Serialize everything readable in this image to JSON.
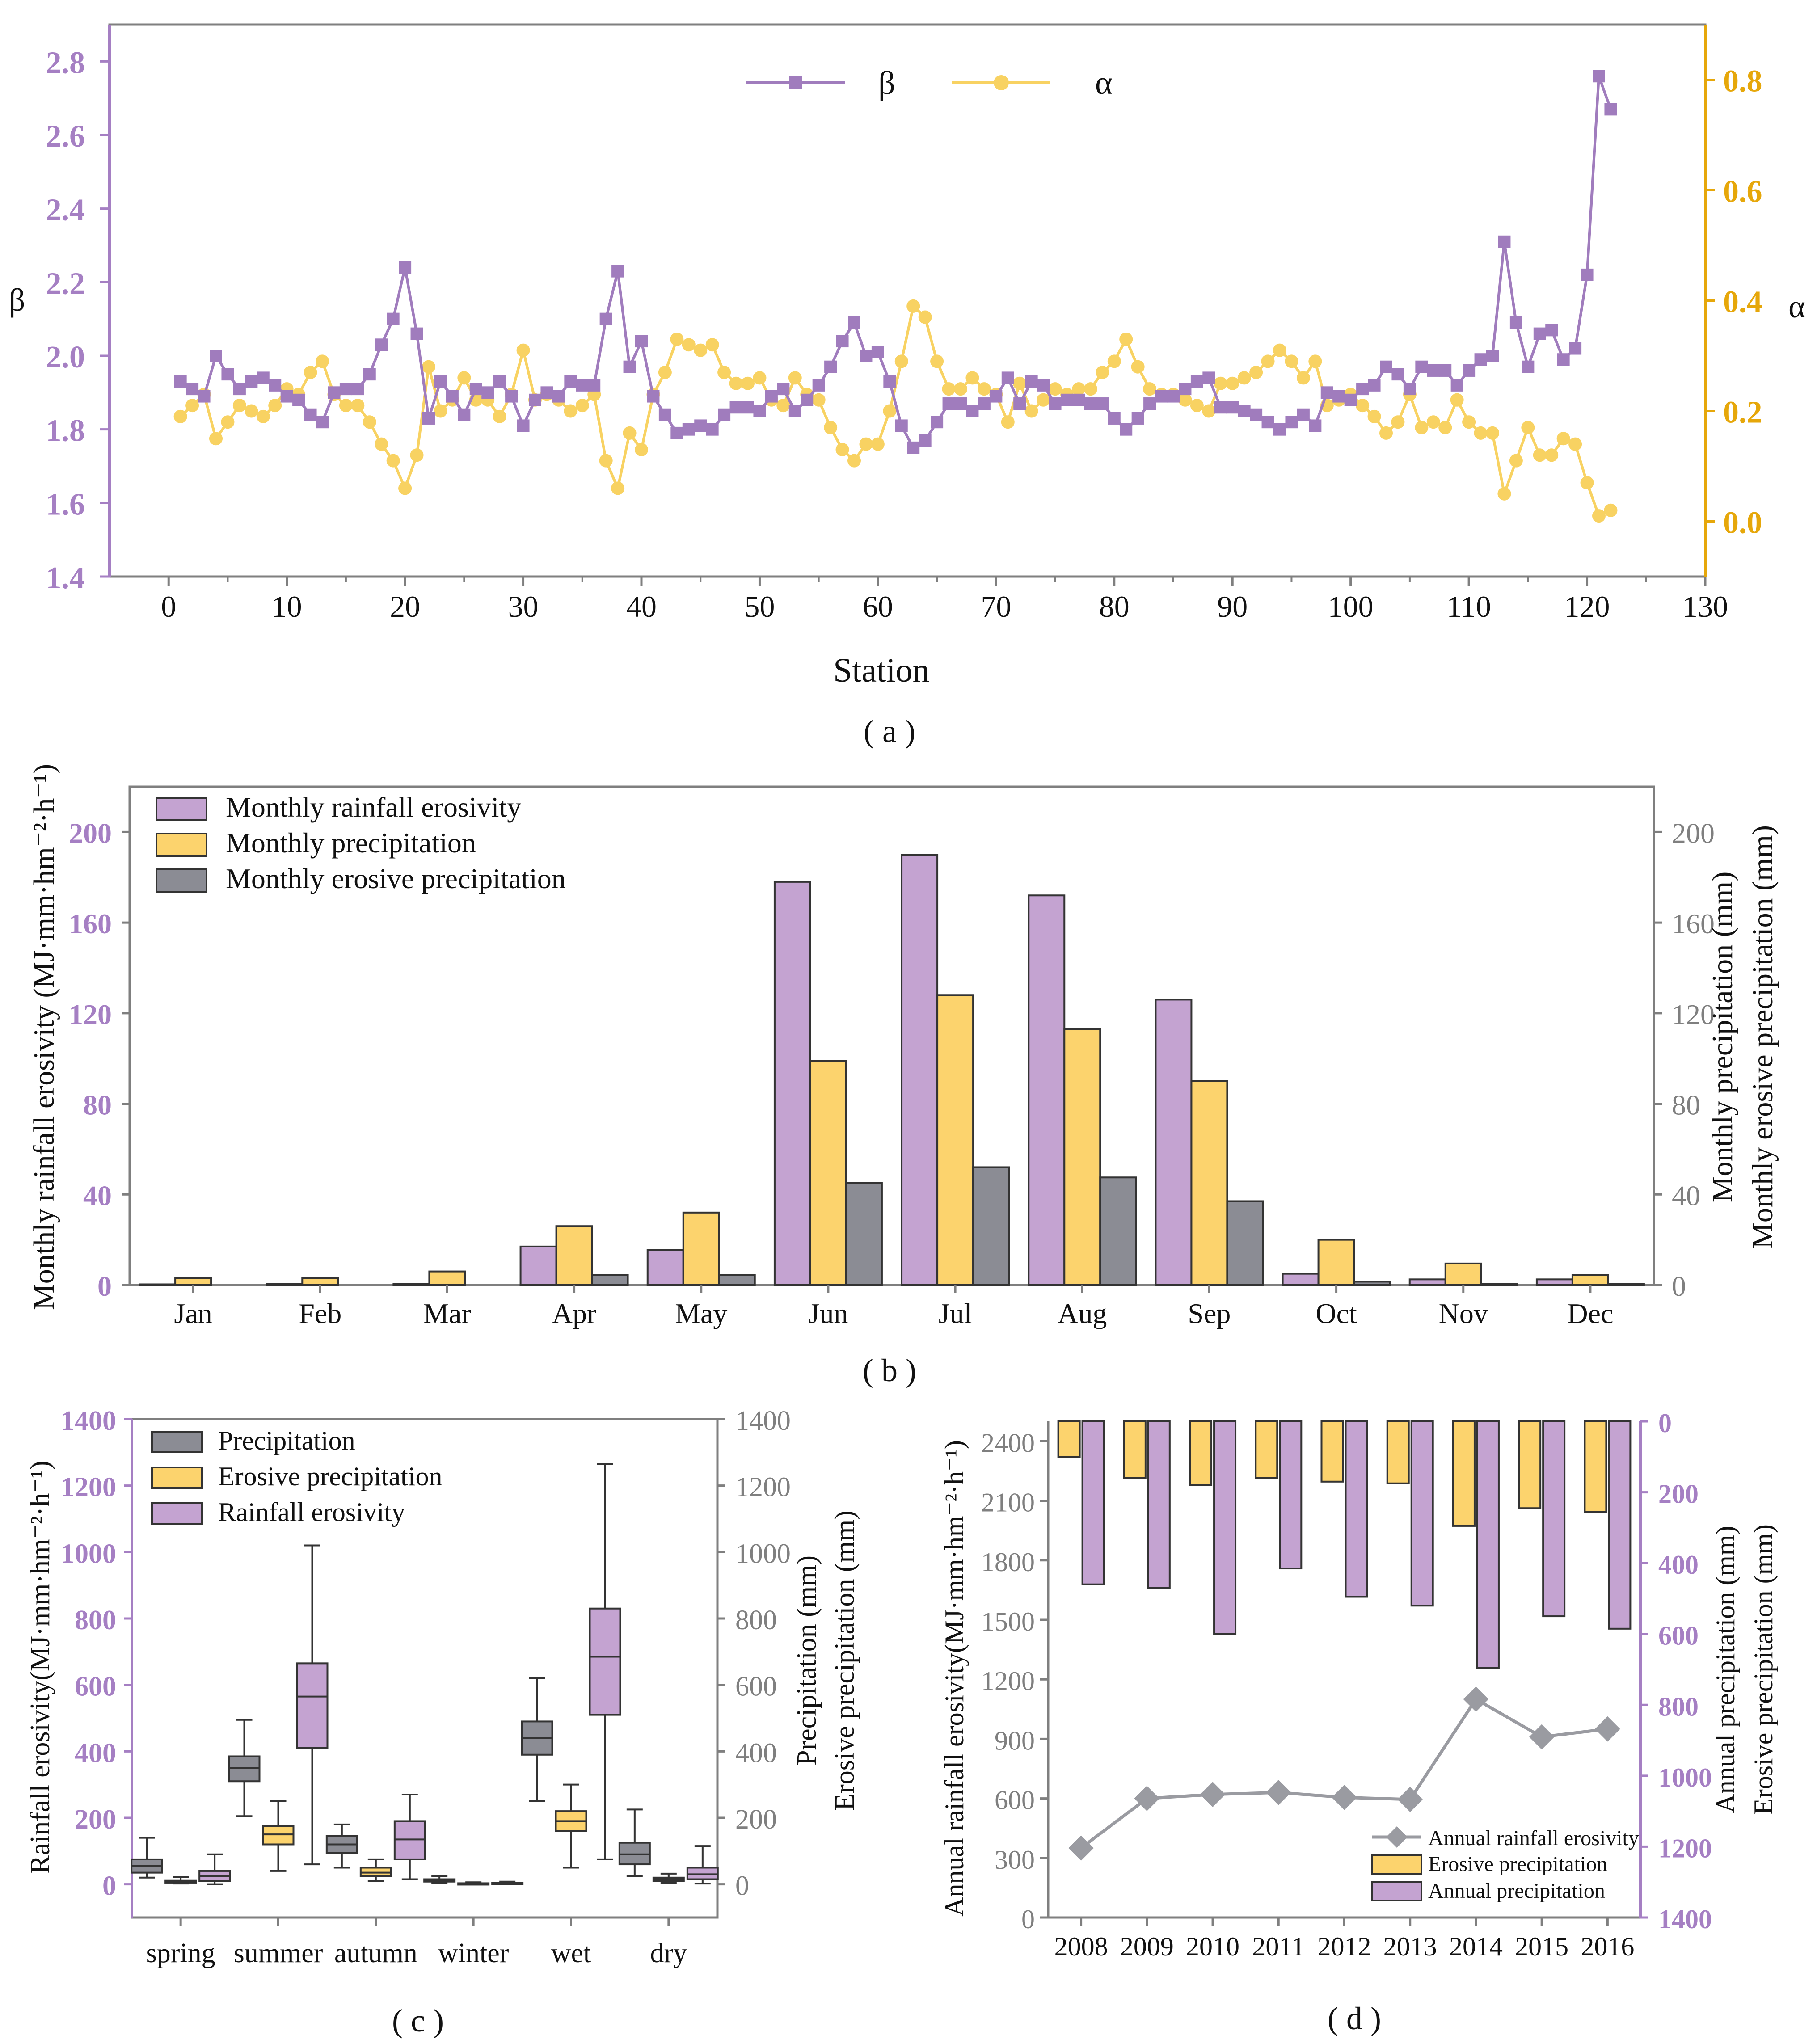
{
  "colors": {
    "purple": "#c4a3d1",
    "purple_line": "#a07cbd",
    "purple_text": "#a57fc3",
    "yellow": "#fcd36d",
    "yellow_line": "#f8d262",
    "yellow_text": "#e6a70a",
    "gray": "#8b8c94",
    "gray_line": "#9a9ba1",
    "axis": "#7f7f7f"
  },
  "captions": {
    "a": "( a )",
    "b": "( b )",
    "c": "( c )",
    "d": "( d )"
  },
  "chart_data": [
    {
      "id": "a",
      "type": "line",
      "xlabel": "Station",
      "ylabel_left": "β",
      "ylabel_right": "α",
      "xlim": [
        -5,
        130
      ],
      "xticks": [
        "0",
        "10",
        "20",
        "30",
        "40",
        "50",
        "60",
        "70",
        "80",
        "90",
        "100",
        "110",
        "120",
        "130"
      ],
      "ylim_left": [
        1.4,
        2.9
      ],
      "yticks_left": [
        "1.4",
        "1.6",
        "1.8",
        "2.0",
        "2.2",
        "2.4",
        "2.6",
        "2.8"
      ],
      "ylim_right": [
        -0.1,
        0.9
      ],
      "yticks_right": [
        "0.0",
        "0.2",
        "0.4",
        "0.6",
        "0.8"
      ],
      "legend": [
        "β",
        "α"
      ],
      "series": [
        {
          "name": "β",
          "axis": "left",
          "values": [
            1.93,
            1.91,
            1.89,
            2.0,
            1.95,
            1.91,
            1.93,
            1.94,
            1.92,
            1.89,
            1.88,
            1.84,
            1.82,
            1.9,
            1.91,
            1.91,
            1.95,
            2.03,
            2.1,
            2.24,
            2.06,
            1.83,
            1.93,
            1.89,
            1.84,
            1.91,
            1.9,
            1.93,
            1.89,
            1.81,
            1.88,
            1.9,
            1.89,
            1.93,
            1.92,
            1.92,
            2.1,
            2.23,
            1.97,
            2.04,
            1.89,
            1.84,
            1.79,
            1.8,
            1.81,
            1.8,
            1.84,
            1.86,
            1.86,
            1.85,
            1.89,
            1.91,
            1.85,
            1.88,
            1.92,
            1.97,
            2.04,
            2.09,
            2.0,
            2.01,
            1.93,
            1.81,
            1.75,
            1.77,
            1.82,
            1.87,
            1.87,
            1.85,
            1.87,
            1.89,
            1.94,
            1.87,
            1.93,
            1.92,
            1.87,
            1.88,
            1.88,
            1.87,
            1.87,
            1.83,
            1.8,
            1.83,
            1.87,
            1.89,
            1.89,
            1.91,
            1.93,
            1.94,
            1.86,
            1.86,
            1.85,
            1.84,
            1.82,
            1.8,
            1.82,
            1.84,
            1.81,
            1.9,
            1.89,
            1.88,
            1.91,
            1.92,
            1.97,
            1.95,
            1.91,
            1.97,
            1.96,
            1.96,
            1.92,
            1.96,
            1.99,
            2.0,
            2.31,
            2.09,
            1.97,
            2.06,
            2.07,
            1.99,
            2.02,
            2.22,
            2.76,
            2.67
          ]
        },
        {
          "name": "α",
          "axis": "right",
          "values": [
            0.19,
            0.21,
            0.23,
            0.15,
            0.18,
            0.21,
            0.2,
            0.19,
            0.21,
            0.24,
            0.23,
            0.27,
            0.29,
            0.23,
            0.21,
            0.21,
            0.18,
            0.14,
            0.11,
            0.06,
            0.12,
            0.28,
            0.2,
            0.22,
            0.26,
            0.22,
            0.22,
            0.19,
            0.23,
            0.31,
            0.22,
            0.23,
            0.22,
            0.2,
            0.21,
            0.23,
            0.11,
            0.06,
            0.16,
            0.13,
            0.23,
            0.27,
            0.33,
            0.32,
            0.31,
            0.32,
            0.27,
            0.25,
            0.25,
            0.26,
            0.22,
            0.21,
            0.26,
            0.23,
            0.22,
            0.17,
            0.13,
            0.11,
            0.14,
            0.14,
            0.2,
            0.29,
            0.39,
            0.37,
            0.29,
            0.24,
            0.24,
            0.26,
            0.24,
            0.23,
            0.18,
            0.25,
            0.2,
            0.22,
            0.24,
            0.23,
            0.24,
            0.24,
            0.27,
            0.29,
            0.33,
            0.28,
            0.24,
            0.23,
            0.23,
            0.22,
            0.21,
            0.2,
            0.25,
            0.25,
            0.26,
            0.27,
            0.29,
            0.31,
            0.29,
            0.26,
            0.29,
            0.21,
            0.22,
            0.23,
            0.21,
            0.19,
            0.16,
            0.18,
            0.23,
            0.17,
            0.18,
            0.17,
            0.22,
            0.18,
            0.16,
            0.16,
            0.05,
            0.11,
            0.17,
            0.12,
            0.12,
            0.15,
            0.14,
            0.07,
            0.01,
            0.02
          ]
        }
      ]
    },
    {
      "id": "b",
      "type": "bar",
      "ylabel_left": "Monthly rainfall erosivity (MJ·mm·hm⁻²·h⁻¹)",
      "ylabel_right_1": "Monthly precipitation (mm)",
      "ylabel_right_2": "Monthly erosive precipitation (mm)",
      "categories": [
        "Jan",
        "Feb",
        "Mar",
        "Apr",
        "May",
        "Jun",
        "Jul",
        "Aug",
        "Sep",
        "Oct",
        "Nov",
        "Dec"
      ],
      "ylim": [
        0,
        220
      ],
      "yticks": [
        "0",
        "40",
        "80",
        "120",
        "160",
        "200"
      ],
      "series": [
        {
          "name": "Monthly rainfall erosivity",
          "values": [
            0.3,
            0.5,
            0.5,
            17,
            15.5,
            178,
            190,
            172,
            126,
            5,
            2.5,
            2.5
          ]
        },
        {
          "name": "Monthly precipitation",
          "values": [
            3,
            3,
            6,
            26,
            32,
            99,
            128,
            113,
            90,
            20,
            9.5,
            4.5
          ]
        },
        {
          "name": "Monthly erosive precipitation",
          "values": [
            0,
            0,
            0,
            4.5,
            4.5,
            45,
            52,
            47.5,
            37,
            1.5,
            0.5,
            0.5
          ]
        }
      ]
    },
    {
      "id": "c",
      "type": "boxplot",
      "ylabel_left": "Rainfall erosivity(MJ·mm·hm⁻²·h⁻¹)",
      "ylabel_right_1": "Precipitation (mm)",
      "ylabel_right_2": "Erosive precipitation (mm)",
      "categories": [
        "spring",
        "summer",
        "autumn",
        "winter",
        "wet",
        "dry"
      ],
      "ylim": [
        -100,
        1400
      ],
      "yticks": [
        "0",
        "200",
        "400",
        "600",
        "800",
        "1000",
        "1200",
        "1400"
      ],
      "series": [
        {
          "name": "Precipitation",
          "boxes": [
            [
              20,
              35,
              55,
              75,
              140
            ],
            [
              205,
              310,
              350,
              385,
              495
            ],
            [
              50,
              95,
              120,
              145,
              180
            ],
            [
              5,
              8,
              12,
              15,
              25
            ],
            [
              250,
              390,
              440,
              490,
              620
            ],
            [
              25,
              60,
              90,
              125,
              225
            ]
          ]
        },
        {
          "name": "Erosive precipitation",
          "boxes": [
            [
              2,
              5,
              8,
              12,
              22
            ],
            [
              40,
              120,
              150,
              175,
              250
            ],
            [
              10,
              25,
              35,
              50,
              75
            ],
            [
              0,
              1,
              2,
              3,
              6
            ],
            [
              50,
              160,
              190,
              220,
              300
            ],
            [
              5,
              10,
              15,
              20,
              32
            ]
          ]
        },
        {
          "name": "Rainfall erosivity",
          "boxes": [
            [
              0,
              10,
              25,
              40,
              90
            ],
            [
              60,
              410,
              565,
              665,
              1020
            ],
            [
              15,
              75,
              135,
              190,
              270
            ],
            [
              0,
              1,
              2,
              4,
              8
            ],
            [
              75,
              510,
              685,
              830,
              1265
            ],
            [
              2,
              15,
              30,
              50,
              115
            ]
          ]
        }
      ]
    },
    {
      "id": "d",
      "type": "bar+line",
      "ylabel_left": "Annual rainfall erosivity(MJ·mm·hm⁻²·h⁻¹)",
      "ylabel_right_1": "Annual precipitation (mm)",
      "ylabel_right_2": "Erosive precipitation (mm)",
      "categories": [
        "2008",
        "2009",
        "2010",
        "2011",
        "2012",
        "2013",
        "2014",
        "2015",
        "2016"
      ],
      "ylim_left": [
        0,
        2500
      ],
      "yticks_left": [
        "0",
        "300",
        "600",
        "900",
        "1200",
        "1500",
        "1800",
        "2100",
        "2400"
      ],
      "ylim_right_inverted": [
        0,
        1400
      ],
      "yticks_right": [
        "0",
        "200",
        "400",
        "600",
        "800",
        "1000",
        "1200",
        "1400"
      ],
      "series": [
        {
          "name": "Annual rainfall erosivity",
          "axis": "left",
          "values": [
            350,
            600,
            620,
            630,
            605,
            595,
            1100,
            910,
            950
          ]
        },
        {
          "name": "Erosive precipitation",
          "axis": "right",
          "values": [
            100,
            160,
            180,
            160,
            170,
            175,
            295,
            245,
            255
          ]
        },
        {
          "name": "Annual precipitation",
          "axis": "right",
          "values": [
            460,
            470,
            600,
            415,
            495,
            520,
            695,
            550,
            585
          ]
        }
      ]
    }
  ]
}
